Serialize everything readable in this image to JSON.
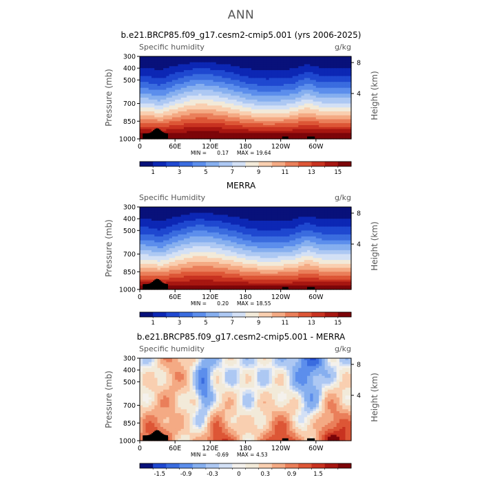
{
  "page_title": "ANN",
  "chart_data": [
    {
      "type": "heatmap",
      "title": "b.e21.BRCP85.f09_g17.cesm2-cmip5.001 (yrs 2006-2025)",
      "left_label": "Specific humidity",
      "units": "g/kg",
      "ylabel": "Pressure (mb)",
      "y2label": "Height (km)",
      "x_ticks": [
        "0",
        "60E",
        "120E",
        "180",
        "120W",
        "60W"
      ],
      "x_tick_values": [
        0,
        60,
        120,
        180,
        240,
        300
      ],
      "xlim": [
        0,
        360
      ],
      "y_ticks": [
        "300",
        "400",
        "500",
        "700",
        "850",
        "1000"
      ],
      "y_tick_values": [
        300,
        400,
        500,
        700,
        850,
        1000
      ],
      "ylim": [
        300,
        1000
      ],
      "y2_ticks": [
        "8",
        "4"
      ],
      "stats_min_label": "MIN =",
      "stats_min": "0.17",
      "stats_max_label": "MAX =",
      "stats_max": "19.64",
      "colorbar": {
        "labels": [
          "1",
          "3",
          "5",
          "7",
          "9",
          "11",
          "13",
          "15"
        ],
        "levels": [
          0,
          1,
          2,
          3,
          4,
          5,
          6,
          7,
          8,
          9,
          10,
          11,
          12,
          13,
          14,
          15,
          16
        ],
        "colors": [
          "#08117a",
          "#0c27b4",
          "#1f48d0",
          "#3a6cdf",
          "#5c8eec",
          "#86afef",
          "#adc8f3",
          "#d3e0f5",
          "#f2ead9",
          "#f9cfb0",
          "#f4aa84",
          "#ea7f5a",
          "#dd5636",
          "#c83220",
          "#a71611",
          "#7c0509"
        ]
      }
    },
    {
      "type": "heatmap",
      "title": "MERRA",
      "left_label": "Specific Humidity",
      "units": "g/kg",
      "ylabel": "Pressure (mb)",
      "y2label": "Height (km)",
      "x_ticks": [
        "0",
        "60E",
        "120E",
        "180",
        "120W",
        "60W"
      ],
      "x_tick_values": [
        0,
        60,
        120,
        180,
        240,
        300
      ],
      "xlim": [
        0,
        360
      ],
      "y_ticks": [
        "300",
        "400",
        "500",
        "700",
        "850",
        "1000"
      ],
      "y_tick_values": [
        300,
        400,
        500,
        700,
        850,
        1000
      ],
      "ylim": [
        300,
        1000
      ],
      "y2_ticks": [
        "8",
        "4"
      ],
      "stats_min_label": "MIN =",
      "stats_min": "0.20",
      "stats_max_label": "MAX =",
      "stats_max": "18.55",
      "colorbar": {
        "labels": [
          "1",
          "3",
          "5",
          "7",
          "9",
          "11",
          "13",
          "15"
        ],
        "levels": [
          0,
          1,
          2,
          3,
          4,
          5,
          6,
          7,
          8,
          9,
          10,
          11,
          12,
          13,
          14,
          15,
          16
        ],
        "colors": [
          "#08117a",
          "#0c27b4",
          "#1f48d0",
          "#3a6cdf",
          "#5c8eec",
          "#86afef",
          "#adc8f3",
          "#d3e0f5",
          "#f2ead9",
          "#f9cfb0",
          "#f4aa84",
          "#ea7f5a",
          "#dd5636",
          "#c83220",
          "#a71611",
          "#7c0509"
        ]
      }
    },
    {
      "type": "heatmap",
      "title": "b.e21.BRCP85.f09_g17.cesm2-cmip5.001 - MERRA",
      "left_label": "Specific humidity",
      "units": "g/kg",
      "ylabel": "Pressure (mb)",
      "y2label": "Height (km)",
      "x_ticks": [
        "0",
        "60E",
        "120E",
        "180",
        "120W",
        "60W"
      ],
      "x_tick_values": [
        0,
        60,
        120,
        180,
        240,
        300
      ],
      "xlim": [
        0,
        360
      ],
      "y_ticks": [
        "300",
        "400",
        "500",
        "700",
        "850",
        "1000"
      ],
      "y_tick_values": [
        300,
        400,
        500,
        700,
        850,
        1000
      ],
      "ylim": [
        300,
        1000
      ],
      "y2_ticks": [
        "8",
        "4"
      ],
      "stats_min_label": "MIN =",
      "stats_min": "-0.69",
      "stats_max_label": "MAX =",
      "stats_max": "4.53",
      "colorbar": {
        "labels": [
          "-1.5",
          "-0.9",
          "-0.3",
          "0",
          "0.3",
          "0.9",
          "1.5"
        ],
        "levels": [
          -1.8,
          -1.5,
          -1.2,
          -0.9,
          -0.6,
          -0.3,
          -0.1,
          0,
          0.1,
          0.3,
          0.6,
          0.9,
          1.2,
          1.5,
          1.8
        ],
        "colors": [
          "#08117a",
          "#1f48d0",
          "#3a6cdf",
          "#5c8eec",
          "#86afef",
          "#adc8f3",
          "#d3e0f5",
          "#f4f1ec",
          "#f2ead9",
          "#f9cfb0",
          "#f4aa84",
          "#ea7f5a",
          "#dd5636",
          "#c83220",
          "#a71611",
          "#7c0509"
        ]
      }
    }
  ]
}
